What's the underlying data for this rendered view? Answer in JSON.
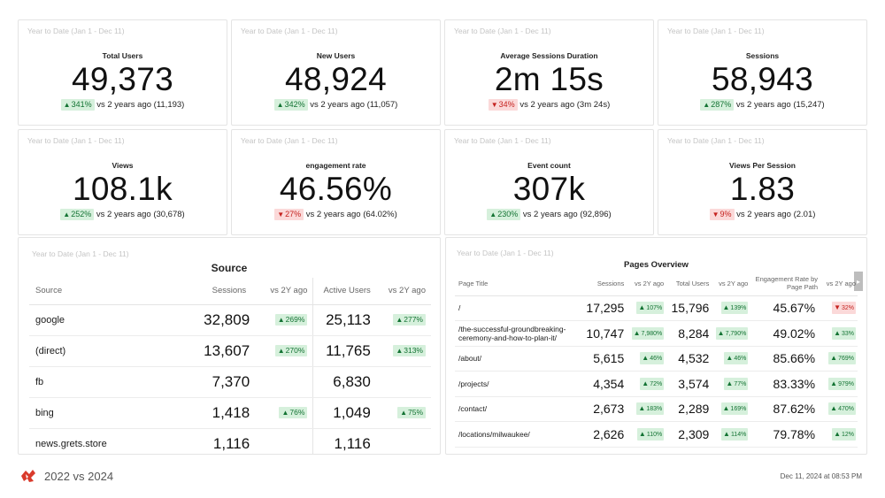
{
  "kpis": [
    {
      "range": "Year to Date (Jan 1 - Dec 11)",
      "title": "Total Users",
      "value": "49,373",
      "delta": "341%",
      "dir": "up",
      "cmp": "vs 2 years ago (11,193)"
    },
    {
      "range": "Year to Date (Jan 1 - Dec 11)",
      "title": "New Users",
      "value": "48,924",
      "delta": "342%",
      "dir": "up",
      "cmp": "vs 2 years ago (11,057)"
    },
    {
      "range": "Year to Date (Jan 1 - Dec 11)",
      "title": "Average Sessions Duration",
      "value": "2m 15s",
      "delta": "34%",
      "dir": "down",
      "cmp": "vs 2 years ago (3m 24s)"
    },
    {
      "range": "Year to Date (Jan 1 - Dec 11)",
      "title": "Sessions",
      "value": "58,943",
      "delta": "287%",
      "dir": "up",
      "cmp": "vs 2 years ago (15,247)"
    },
    {
      "range": "Year to Date (Jan 1 - Dec 11)",
      "title": "Views",
      "value": "108.1k",
      "delta": "252%",
      "dir": "up",
      "cmp": "vs 2 years ago (30,678)"
    },
    {
      "range": "Year to Date (Jan 1 - Dec 11)",
      "title": "engagement rate",
      "value": "46.56%",
      "delta": "27%",
      "dir": "down",
      "cmp": "vs 2 years ago (64.02%)"
    },
    {
      "range": "Year to Date (Jan 1 - Dec 11)",
      "title": "Event count",
      "value": "307k",
      "delta": "230%",
      "dir": "up",
      "cmp": "vs 2 years ago (92,896)"
    },
    {
      "range": "Year to Date (Jan 1 - Dec 11)",
      "title": "Views Per Session",
      "value": "1.83",
      "delta": "9%",
      "dir": "down",
      "cmp": "vs 2 years ago (2.01)"
    }
  ],
  "source": {
    "range": "Year to Date (Jan 1 - Dec 11)",
    "title": "Source",
    "headers": {
      "source": "Source",
      "sessions": "Sessions",
      "vs1": "vs 2Y ago",
      "active": "Active Users",
      "vs2": "vs 2Y ago"
    },
    "rows": [
      {
        "source": "google",
        "sessions": "32,809",
        "sess_delta": "269%",
        "active": "25,113",
        "active_delta": "277%"
      },
      {
        "source": "(direct)",
        "sessions": "13,607",
        "sess_delta": "270%",
        "active": "11,765",
        "active_delta": "313%"
      },
      {
        "source": "fb",
        "sessions": "7,370",
        "sess_delta": "",
        "active": "6,830",
        "active_delta": ""
      },
      {
        "source": "bing",
        "sessions": "1,418",
        "sess_delta": "76%",
        "active": "1,049",
        "active_delta": "75%"
      },
      {
        "source": "news.grets.store",
        "sessions": "1,116",
        "sess_delta": "",
        "active": "1,116",
        "active_delta": ""
      }
    ]
  },
  "pages": {
    "range": "Year to Date (Jan 1 - Dec 11)",
    "title": "Pages Overview",
    "headers": {
      "page": "Page Title",
      "sessions": "Sessions",
      "vs1": "vs 2Y ago",
      "users": "Total Users",
      "vs2": "vs 2Y ago",
      "eng": "Engagement Rate by Page Path",
      "vs3": "vs 2Y ago"
    },
    "rows": [
      {
        "page": "/",
        "sessions": "17,295",
        "d1": "107%",
        "d1dir": "up",
        "users": "15,796",
        "d2": "139%",
        "d2dir": "up",
        "eng": "45.67%",
        "d3": "32%",
        "d3dir": "down"
      },
      {
        "page": "/the-successful-groundbreaking-ceremony-and-how-to-plan-it/",
        "sessions": "10,747",
        "d1": "7,980%",
        "d1dir": "up",
        "users": "8,284",
        "d2": "7,790%",
        "d2dir": "up",
        "eng": "49.02%",
        "d3": "33%",
        "d3dir": "up"
      },
      {
        "page": "/about/",
        "sessions": "5,615",
        "d1": "46%",
        "d1dir": "up",
        "users": "4,532",
        "d2": "46%",
        "d2dir": "up",
        "eng": "85.66%",
        "d3": "769%",
        "d3dir": "up"
      },
      {
        "page": "/projects/",
        "sessions": "4,354",
        "d1": "72%",
        "d1dir": "up",
        "users": "3,574",
        "d2": "77%",
        "d2dir": "up",
        "eng": "83.33%",
        "d3": "979%",
        "d3dir": "up"
      },
      {
        "page": "/contact/",
        "sessions": "2,673",
        "d1": "183%",
        "d1dir": "up",
        "users": "2,289",
        "d2": "169%",
        "d2dir": "up",
        "eng": "87.62%",
        "d3": "470%",
        "d3dir": "up"
      },
      {
        "page": "/locations/milwaukee/",
        "sessions": "2,626",
        "d1": "110%",
        "d1dir": "up",
        "users": "2,309",
        "d2": "114%",
        "d2dir": "up",
        "eng": "79.78%",
        "d3": "12%",
        "d3dir": "up"
      }
    ]
  },
  "footer": {
    "title": "2022 vs 2024",
    "date": "Dec 11, 2024 at 08:53 PM"
  },
  "colors": {
    "up_bg": "#d6f0dc",
    "up_fg": "#137333",
    "down_bg": "#fbd9d9",
    "down_fg": "#c5221f",
    "brand": "#d93a2b"
  }
}
